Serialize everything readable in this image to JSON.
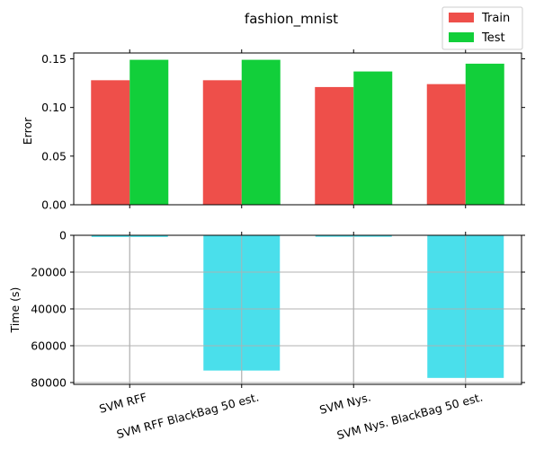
{
  "chart_data": [
    {
      "type": "bar",
      "title": "fashion_mnist",
      "categories": [
        "SVM RFF",
        "SVM RFF BlackBag 50 est.",
        "SVM Nys.",
        "SVM Nys. BlackBag 50 est."
      ],
      "series": [
        {
          "name": "Train",
          "color": "#ee4f4a",
          "values": [
            0.128,
            0.128,
            0.121,
            0.124
          ]
        },
        {
          "name": "Test",
          "color": "#12cf3a",
          "values": [
            0.149,
            0.149,
            0.137,
            0.145
          ]
        }
      ],
      "ylabel": "Error",
      "ylim": [
        0,
        0.156
      ],
      "yticks": [
        "0.00",
        "0.05",
        "0.10",
        "0.15"
      ],
      "ytick_values": [
        0,
        0.05,
        0.1,
        0.15
      ],
      "grid": false,
      "legend_position": "top-right"
    },
    {
      "type": "bar",
      "categories": [
        "SVM RFF",
        "SVM RFF BlackBag 50 est.",
        "SVM Nys.",
        "SVM Nys. BlackBag 50 est."
      ],
      "series": [
        {
          "color": "#4adfeb",
          "values": [
            900,
            73500,
            800,
            77500
          ]
        }
      ],
      "ylabel": "Time (s)",
      "ylim": [
        0,
        81000
      ],
      "y_inverted": true,
      "yticks": [
        "0",
        "20000",
        "40000",
        "60000",
        "80000"
      ],
      "ytick_values": [
        0,
        20000,
        40000,
        60000,
        80000
      ],
      "grid": true
    }
  ]
}
